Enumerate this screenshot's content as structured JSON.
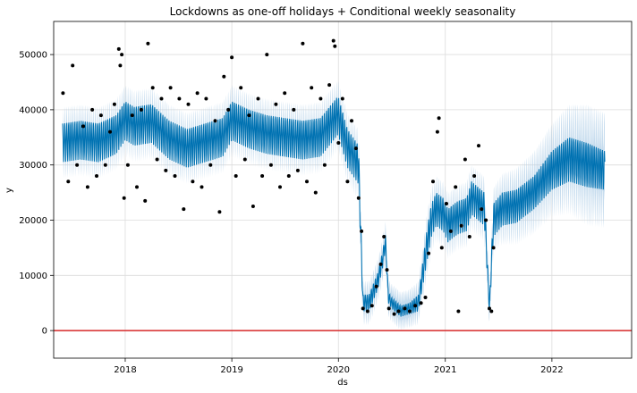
{
  "chart_data": {
    "type": "line",
    "title": "Lockdowns as one-off holidays + Conditional weekly seasonality",
    "xlabel": "ds",
    "ylabel": "y",
    "x_ticks": [
      "2018",
      "2019",
      "2020",
      "2021",
      "2022"
    ],
    "y_ticks": [
      "0",
      "10000",
      "20000",
      "30000",
      "40000",
      "50000"
    ],
    "xlim": [
      "2017-05-01",
      "2022-10-01"
    ],
    "ylim": [
      -5000,
      56000
    ],
    "grid": true,
    "series": [
      {
        "role": "forecast",
        "color": "#0072b2",
        "band_color": "#b3d0e8",
        "x": [
          "2017-06-01",
          "2017-08-01",
          "2017-10-01",
          "2017-12-01",
          "2018-01-01",
          "2018-02-01",
          "2018-04-01",
          "2018-06-01",
          "2018-08-01",
          "2018-10-01",
          "2018-12-01",
          "2019-01-01",
          "2019-03-01",
          "2019-05-01",
          "2019-07-01",
          "2019-09-01",
          "2019-11-01",
          "2019-12-31",
          "2020-02-01",
          "2020-03-10",
          "2020-03-25",
          "2020-04-15",
          "2020-05-15",
          "2020-06-01",
          "2020-06-10",
          "2020-06-20",
          "2020-07-01",
          "2020-08-01",
          "2020-09-01",
          "2020-10-01",
          "2020-11-01",
          "2020-11-15",
          "2020-12-01",
          "2020-12-25",
          "2021-01-10",
          "2021-02-01",
          "2021-02-15",
          "2021-03-15",
          "2021-04-01",
          "2021-05-15",
          "2021-06-01",
          "2021-06-15",
          "2021-07-15",
          "2021-09-01",
          "2021-11-01",
          "2022-01-01",
          "2022-03-01",
          "2022-05-01",
          "2022-07-01"
        ],
        "y": [
          34000,
          34500,
          34000,
          35500,
          38000,
          37000,
          37500,
          34500,
          33000,
          34000,
          35000,
          38000,
          36500,
          35500,
          35000,
          34500,
          35000,
          39000,
          33000,
          30000,
          5000,
          5000,
          9000,
          13000,
          16000,
          6000,
          5000,
          3500,
          4000,
          5000,
          16000,
          20000,
          22000,
          21000,
          19000,
          20000,
          20500,
          21000,
          24000,
          22000,
          4000,
          20000,
          22000,
          22500,
          25000,
          29000,
          31000,
          30000,
          29000
        ],
        "amplitude": [
          3500,
          3500,
          3500,
          3500,
          3500,
          3500,
          3500,
          3500,
          3500,
          3500,
          3500,
          3500,
          3500,
          3500,
          3500,
          3500,
          3500,
          3500,
          3500,
          3500,
          1500,
          1500,
          1500,
          1500,
          1500,
          1000,
          1000,
          1000,
          1000,
          1500,
          3000,
          3000,
          3000,
          3000,
          3000,
          3000,
          3000,
          3000,
          3000,
          3000,
          1000,
          3000,
          3000,
          3000,
          3000,
          3500,
          4000,
          4000,
          3500
        ],
        "band_width": [
          3000,
          3000,
          3000,
          3000,
          3000,
          3000,
          3000,
          3000,
          3000,
          3000,
          3000,
          3000,
          3000,
          3000,
          3000,
          3000,
          3000,
          3000,
          3000,
          3000,
          2500,
          2500,
          2500,
          2500,
          2500,
          2500,
          2500,
          2500,
          2500,
          2500,
          3000,
          3000,
          3000,
          3000,
          3000,
          3000,
          3000,
          3000,
          3000,
          3000,
          2500,
          3000,
          3500,
          4000,
          4500,
          5000,
          6000,
          7000,
          7000
        ]
      }
    ],
    "observations": [
      [
        "2017-06-02",
        43000
      ],
      [
        "2017-06-20",
        27000
      ],
      [
        "2017-07-05",
        48000
      ],
      [
        "2017-07-20",
        30000
      ],
      [
        "2017-08-10",
        37000
      ],
      [
        "2017-08-25",
        26000
      ],
      [
        "2017-09-10",
        40000
      ],
      [
        "2017-09-25",
        28000
      ],
      [
        "2017-10-10",
        39000
      ],
      [
        "2017-10-25",
        30000
      ],
      [
        "2017-11-10",
        36000
      ],
      [
        "2017-11-25",
        41000
      ],
      [
        "2017-12-10",
        51000
      ],
      [
        "2017-12-15",
        48000
      ],
      [
        "2017-12-20",
        50000
      ],
      [
        "2017-12-28",
        24000
      ],
      [
        "2018-01-10",
        30000
      ],
      [
        "2018-01-25",
        39000
      ],
      [
        "2018-02-10",
        26000
      ],
      [
        "2018-02-25",
        40000
      ],
      [
        "2018-03-10",
        23500
      ],
      [
        "2018-03-20",
        52000
      ],
      [
        "2018-04-05",
        44000
      ],
      [
        "2018-04-20",
        31000
      ],
      [
        "2018-05-05",
        42000
      ],
      [
        "2018-05-20",
        29000
      ],
      [
        "2018-06-05",
        44000
      ],
      [
        "2018-06-20",
        28000
      ],
      [
        "2018-07-05",
        42000
      ],
      [
        "2018-07-20",
        22000
      ],
      [
        "2018-08-05",
        41000
      ],
      [
        "2018-08-20",
        27000
      ],
      [
        "2018-09-05",
        43000
      ],
      [
        "2018-09-20",
        26000
      ],
      [
        "2018-10-05",
        42000
      ],
      [
        "2018-10-20",
        30000
      ],
      [
        "2018-11-05",
        38000
      ],
      [
        "2018-11-20",
        21500
      ],
      [
        "2018-12-05",
        46000
      ],
      [
        "2018-12-20",
        40000
      ],
      [
        "2019-01-01",
        49500
      ],
      [
        "2019-01-15",
        28000
      ],
      [
        "2019-02-01",
        44000
      ],
      [
        "2019-02-15",
        31000
      ],
      [
        "2019-03-01",
        39000
      ],
      [
        "2019-03-15",
        22500
      ],
      [
        "2019-04-01",
        42000
      ],
      [
        "2019-04-15",
        28000
      ],
      [
        "2019-05-01",
        50000
      ],
      [
        "2019-05-15",
        30000
      ],
      [
        "2019-06-01",
        41000
      ],
      [
        "2019-06-15",
        26000
      ],
      [
        "2019-07-01",
        43000
      ],
      [
        "2019-07-15",
        28000
      ],
      [
        "2019-08-01",
        40000
      ],
      [
        "2019-08-15",
        29000
      ],
      [
        "2019-09-01",
        52000
      ],
      [
        "2019-09-15",
        27000
      ],
      [
        "2019-10-01",
        44000
      ],
      [
        "2019-10-15",
        25000
      ],
      [
        "2019-11-01",
        42000
      ],
      [
        "2019-11-15",
        30000
      ],
      [
        "2019-12-01",
        44500
      ],
      [
        "2019-12-15",
        52500
      ],
      [
        "2019-12-20",
        51500
      ],
      [
        "2020-01-01",
        34000
      ],
      [
        "2020-01-15",
        42000
      ],
      [
        "2020-02-01",
        27000
      ],
      [
        "2020-02-15",
        38000
      ],
      [
        "2020-03-01",
        33000
      ],
      [
        "2020-03-10",
        24000
      ],
      [
        "2020-03-20",
        18000
      ],
      [
        "2020-03-25",
        4000
      ],
      [
        "2020-04-10",
        3500
      ],
      [
        "2020-04-25",
        4500
      ],
      [
        "2020-05-10",
        8000
      ],
      [
        "2020-05-25",
        12000
      ],
      [
        "2020-06-05",
        17000
      ],
      [
        "2020-06-15",
        11000
      ],
      [
        "2020-06-22",
        4000
      ],
      [
        "2020-07-10",
        3000
      ],
      [
        "2020-07-25",
        3500
      ],
      [
        "2020-08-15",
        4000
      ],
      [
        "2020-09-01",
        3500
      ],
      [
        "2020-09-20",
        4500
      ],
      [
        "2020-10-10",
        5000
      ],
      [
        "2020-10-25",
        6000
      ],
      [
        "2020-11-05",
        14000
      ],
      [
        "2020-11-20",
        27000
      ],
      [
        "2020-12-05",
        36000
      ],
      [
        "2020-12-10",
        38500
      ],
      [
        "2020-12-20",
        15000
      ],
      [
        "2021-01-05",
        23000
      ],
      [
        "2021-01-20",
        18000
      ],
      [
        "2021-02-05",
        26000
      ],
      [
        "2021-02-15",
        3500
      ],
      [
        "2021-02-25",
        19000
      ],
      [
        "2021-03-10",
        31000
      ],
      [
        "2021-03-25",
        17000
      ],
      [
        "2021-04-10",
        28000
      ],
      [
        "2021-04-25",
        33500
      ],
      [
        "2021-05-05",
        22000
      ],
      [
        "2021-05-20",
        20000
      ],
      [
        "2021-06-01",
        4000
      ],
      [
        "2021-06-08",
        3500
      ],
      [
        "2021-06-15",
        15000
      ]
    ],
    "reference_line": {
      "y": 0,
      "color": "#d62728"
    }
  }
}
